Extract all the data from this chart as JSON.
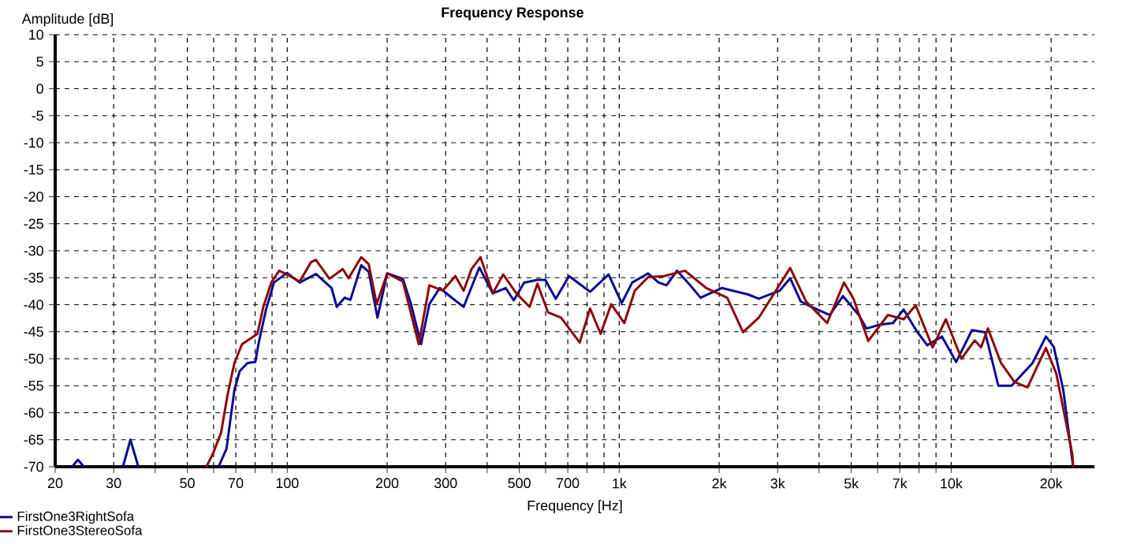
{
  "chart_data": {
    "type": "line",
    "title": "Frequency Response",
    "xlabel": "Frequency [Hz]",
    "ylabel": "Amplitude [dB]",
    "log": "x",
    "grid": true,
    "legend": "bottom left",
    "marker": "none",
    "line_style": "solid",
    "xlim": [
      20,
      27000
    ],
    "ylim": [
      -70,
      10
    ],
    "xticks": [
      20,
      30,
      {
        "value": 40,
        "label": null
      },
      50,
      {
        "value": 60,
        "label": null
      },
      70,
      {
        "value": 80,
        "label": null
      },
      {
        "value": 90,
        "label": null
      },
      100,
      200,
      300,
      {
        "value": 400,
        "label": null
      },
      500,
      {
        "value": 600,
        "label": null
      },
      700,
      {
        "value": 800,
        "label": null
      },
      {
        "value": 900,
        "label": null
      },
      {
        "value": 1000,
        "label": "1k"
      },
      {
        "value": 2000,
        "label": "2k"
      },
      {
        "value": 3000,
        "label": "3k"
      },
      {
        "value": 4000,
        "label": null
      },
      {
        "value": 5000,
        "label": "5k"
      },
      {
        "value": 6000,
        "label": null
      },
      {
        "value": 7000,
        "label": "7k"
      },
      {
        "value": 8000,
        "label": null
      },
      {
        "value": 9000,
        "label": null
      },
      {
        "value": 10000,
        "label": "10k"
      },
      {
        "value": 20000,
        "label": "20k"
      }
    ],
    "yticks": [
      -70,
      -65,
      -60,
      -55,
      -50,
      -45,
      -40,
      -35,
      -30,
      -25,
      -20,
      -15,
      -10,
      -5,
      0,
      5,
      10
    ],
    "series": [
      {
        "name": "FirstOne3RightSofa",
        "color": "#0a0a96",
        "x": [
          22.5,
          23.4,
          24.4,
          28,
          32,
          33.7,
          35.6,
          50,
          62.1,
          65.6,
          69.3,
          71.9,
          75.9,
          80.1,
          82.2,
          86.3,
          91.2,
          99.8,
          109,
          122,
          136,
          141,
          149,
          155,
          167,
          176,
          187,
          200,
          223,
          236,
          253,
          268,
          288,
          316,
          340,
          379,
          416,
          455,
          481,
          517,
          567,
          599,
          644,
          706,
          817,
          929,
          1017,
          1094,
          1222,
          1315,
          1388,
          1493,
          1636,
          1758,
          2036,
          2444,
          2632,
          3043,
          3273,
          3522,
          3790,
          4310,
          4717,
          5265,
          5558,
          6091,
          6676,
          7193,
          7875,
          8468,
          9381,
          10350,
          11550,
          12650,
          13870,
          15200,
          17580,
          19290,
          20370,
          21760,
          23300
        ],
        "values": [
          -70,
          -68.7,
          -70,
          null,
          -70,
          -65,
          -70,
          null,
          -70,
          -66.7,
          -55.8,
          -52.3,
          -50.8,
          -50.6,
          -46.8,
          -40.9,
          -35.9,
          -34.1,
          -35.9,
          -34.3,
          -36.9,
          -40.4,
          -38.7,
          -39.1,
          -32.7,
          -33.9,
          -42.4,
          -34.2,
          -35.2,
          -39.9,
          -47.3,
          -39.9,
          -36.9,
          -38.9,
          -40.4,
          -33.1,
          -37.9,
          -36.9,
          -39.2,
          -35.9,
          -35.4,
          -35.4,
          -38.9,
          -34.7,
          -37.6,
          -34.4,
          -39.7,
          -35.9,
          -34.2,
          -35.9,
          -36.4,
          -33.7,
          -36.4,
          -38.7,
          -36.9,
          -38.1,
          -38.9,
          -37.4,
          -35.1,
          -39.4,
          -40.4,
          -41.9,
          -38.4,
          -41.9,
          -44.4,
          -43.7,
          -43.4,
          -40.9,
          -44.9,
          -47.5,
          -45.9,
          -50.6,
          -44.7,
          -45.1,
          -55,
          -55,
          -50.8,
          -45.9,
          -47.8,
          -55.8,
          -70
        ]
      },
      {
        "name": "FirstOne3StereoSofa",
        "color": "#8c0a0a",
        "x": [
          57.1,
          59.8,
          63.2,
          66.1,
          69.3,
          73.1,
          78.7,
          81.3,
          84.7,
          89.5,
          94.6,
          99.8,
          109,
          118,
          122,
          134,
          147,
          153,
          167,
          176,
          186,
          200,
          223,
          249,
          268,
          294,
          321,
          340,
          359,
          382,
          416,
          447,
          490,
          537,
          567,
          610,
          668,
          760,
          817,
          879,
          946,
          1036,
          1114,
          1222,
          1362,
          1578,
          1828,
          2115,
          2360,
          2632,
          3273,
          3655,
          4229,
          4756,
          5078,
          5627,
          6446,
          7193,
          7816,
          8790,
          9636,
          10740,
          11770,
          12300,
          12900,
          14130,
          15500,
          16980,
          19290,
          20740,
          23170,
          23300
        ],
        "values": [
          -70,
          -67.5,
          -63.7,
          -56.7,
          -50.8,
          -47.3,
          -46,
          -45.4,
          -40.4,
          -35.9,
          -33.7,
          -34.4,
          -35.7,
          -32.1,
          -31.7,
          -35.2,
          -33.4,
          -35.1,
          -31.2,
          -32.5,
          -39.9,
          -34.2,
          -35.7,
          -47.3,
          -36.4,
          -37.4,
          -34.7,
          -37.4,
          -33.4,
          -31.2,
          -37.9,
          -34.4,
          -37.9,
          -40.4,
          -36.1,
          -41.4,
          -42.4,
          -47,
          -40.7,
          -45.4,
          -39.9,
          -43.4,
          -37.4,
          -34.9,
          -34.7,
          -33.7,
          -36.9,
          -38.7,
          -45.1,
          -42.4,
          -33.2,
          -39.4,
          -43.4,
          -35.9,
          -38.9,
          -46.7,
          -41.9,
          -42.7,
          -40.1,
          -47.9,
          -42.7,
          -50,
          -46.6,
          -47.9,
          -44.4,
          -50.8,
          -54.3,
          -55.3,
          -48,
          -52.8,
          -67.7,
          -70
        ]
      }
    ]
  }
}
